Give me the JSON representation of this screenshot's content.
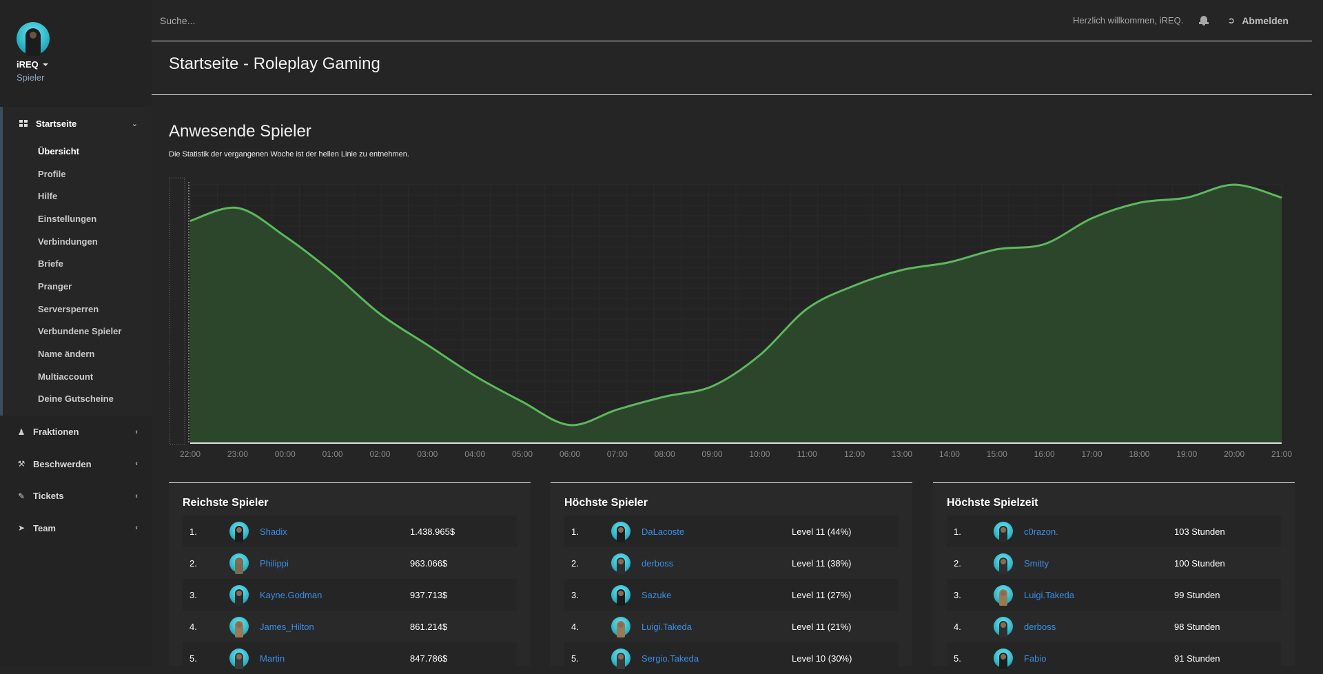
{
  "user": {
    "name": "iREQ",
    "role": "Spieler"
  },
  "nav": {
    "main_label": "Startseite",
    "sub_items": [
      "Übersicht",
      "Profile",
      "Hilfe",
      "Einstellungen",
      "Verbindungen",
      "Briefe",
      "Pranger",
      "Serversperren",
      "Verbundene Spieler",
      "Name ändern",
      "Multiaccount",
      "Deine Gutscheine"
    ],
    "groups": [
      "Fraktionen",
      "Beschwerden",
      "Tickets",
      "Team"
    ]
  },
  "topbar": {
    "search_placeholder": "Suche...",
    "welcome": "Herzlich willkommen, iREQ.",
    "logout": "Abmelden"
  },
  "page_title": "Startseite - Roleplay Gaming",
  "chart": {
    "title": "Anwesende Spieler",
    "subtitle": "Die Statistik der vergangenen Woche ist der hellen Linie zu entnehmen."
  },
  "chart_data": {
    "type": "area",
    "x": [
      "22:00",
      "23:00",
      "00:00",
      "01:00",
      "02:00",
      "03:00",
      "04:00",
      "05:00",
      "06:00",
      "07:00",
      "08:00",
      "09:00",
      "10:00",
      "11:00",
      "12:00",
      "13:00",
      "14:00",
      "15:00",
      "16:00",
      "17:00",
      "18:00",
      "19:00",
      "20:00",
      "21:00"
    ],
    "series": [
      {
        "values": [
          86,
          91,
          80,
          66,
          50,
          38,
          26,
          16,
          7,
          13,
          18,
          22,
          34,
          52,
          61,
          67,
          70,
          75,
          77,
          87,
          93,
          95,
          100,
          95
        ]
      }
    ],
    "ylim": [
      0,
      100
    ],
    "grid": true,
    "colors": {
      "line": "#5cb85c",
      "fill": "#2e4a2d",
      "grid": "#2a2a2a",
      "axis": "#e0e0e0"
    }
  },
  "tables": [
    {
      "title": "Reichste Spieler",
      "rows": [
        {
          "rank": "1.",
          "name": "Shadix",
          "value": "1.438.965$",
          "skin": "#1c1c1c"
        },
        {
          "rank": "2.",
          "name": "Philippi",
          "value": "963.066$",
          "skin": "#7a6a50"
        },
        {
          "rank": "3.",
          "name": "Kayne.Godman",
          "value": "937.713$",
          "skin": "#2a2a2a"
        },
        {
          "rank": "4.",
          "name": "James_Hilton",
          "value": "861.214$",
          "skin": "#9a7a55"
        },
        {
          "rank": "5.",
          "name": "Martin",
          "value": "847.786$",
          "skin": "#3a3a3a"
        }
      ]
    },
    {
      "title": "Höchste Spieler",
      "rows": [
        {
          "rank": "1.",
          "name": "DaLacoste",
          "value": "Level 11 (44%)",
          "skin": "#1c1c1c"
        },
        {
          "rank": "2.",
          "name": "derboss",
          "value": "Level 11 (38%)",
          "skin": "#2f2f2f"
        },
        {
          "rank": "3.",
          "name": "Sazuke",
          "value": "Level 11 (27%)",
          "skin": "#1a1a1a"
        },
        {
          "rank": "4.",
          "name": "Luigi.Takeda",
          "value": "Level 11 (21%)",
          "skin": "#9a7a55"
        },
        {
          "rank": "5.",
          "name": "Sergio.Takeda",
          "value": "Level 10 (30%)",
          "skin": "#3a3a3a"
        }
      ]
    },
    {
      "title": "Höchste Spielzeit",
      "rows": [
        {
          "rank": "1.",
          "name": "c0razon.",
          "value": "103 Stunden",
          "skin": "#2a2a2a"
        },
        {
          "rank": "2.",
          "name": "Smitty",
          "value": "100 Stunden",
          "skin": "#2f2f2f"
        },
        {
          "rank": "3.",
          "name": "Luigi.Takeda",
          "value": "99 Stunden",
          "skin": "#9a7a55"
        },
        {
          "rank": "4.",
          "name": "derboss",
          "value": "98 Stunden",
          "skin": "#2f2f2f"
        },
        {
          "rank": "5.",
          "name": "Fabio",
          "value": "91 Stunden",
          "skin": "#1c1c1c"
        }
      ]
    }
  ]
}
